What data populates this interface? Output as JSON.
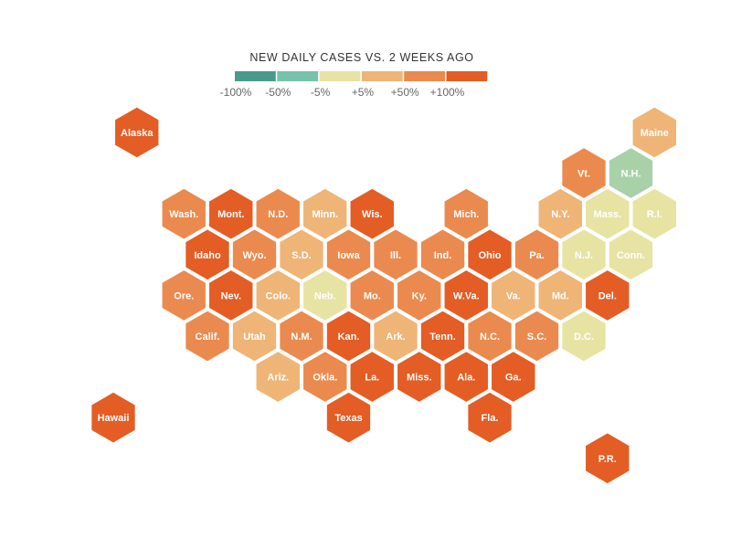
{
  "legend": {
    "title": "NEW DAILY CASES VS. 2 WEEKS AGO",
    "bins": [
      {
        "color": "#4a9a8c"
      },
      {
        "color": "#76c2aa"
      },
      {
        "color": "#e7e3a3"
      },
      {
        "color": "#eeb577"
      },
      {
        "color": "#eb8a4e"
      },
      {
        "color": "#e35d25"
      }
    ],
    "ticks": [
      "-100%",
      "-50%",
      "-5%",
      "+5%",
      "+50%",
      "+100%"
    ]
  },
  "palette": {
    "dark_orange": "#e35d25",
    "mid_orange": "#eb8a4e",
    "light_orange": "#eeb577",
    "pale_yellow": "#e7e3a3",
    "light_green": "#a9d1a8",
    "teal": "#4a9a8c",
    "label_light": "#ffffff"
  },
  "states": [
    {
      "label": "Alaska",
      "row": 0,
      "col": 0.5,
      "color": "dark_orange"
    },
    {
      "label": "Maine",
      "row": 0,
      "col": 11.5,
      "color": "light_orange"
    },
    {
      "label": "Vt.",
      "row": 1,
      "col": 10,
      "color": "mid_orange"
    },
    {
      "label": "N.H.",
      "row": 1,
      "col": 11,
      "color": "light_green"
    },
    {
      "label": "Wash.",
      "row": 2,
      "col": 1.5,
      "color": "mid_orange"
    },
    {
      "label": "Mont.",
      "row": 2,
      "col": 2.5,
      "color": "dark_orange"
    },
    {
      "label": "N.D.",
      "row": 2,
      "col": 3.5,
      "color": "mid_orange"
    },
    {
      "label": "Minn.",
      "row": 2,
      "col": 4.5,
      "color": "light_orange"
    },
    {
      "label": "Wis.",
      "row": 2,
      "col": 5.5,
      "color": "dark_orange"
    },
    {
      "label": "Mich.",
      "row": 2,
      "col": 7.5,
      "color": "mid_orange"
    },
    {
      "label": "N.Y.",
      "row": 2,
      "col": 9.5,
      "color": "light_orange"
    },
    {
      "label": "Mass.",
      "row": 2,
      "col": 10.5,
      "color": "pale_yellow"
    },
    {
      "label": "R.I.",
      "row": 2,
      "col": 11.5,
      "color": "pale_yellow"
    },
    {
      "label": "Idaho",
      "row": 3,
      "col": 2,
      "color": "dark_orange"
    },
    {
      "label": "Wyo.",
      "row": 3,
      "col": 3,
      "color": "mid_orange"
    },
    {
      "label": "S.D.",
      "row": 3,
      "col": 4,
      "color": "light_orange"
    },
    {
      "label": "Iowa",
      "row": 3,
      "col": 5,
      "color": "mid_orange"
    },
    {
      "label": "Ill.",
      "row": 3,
      "col": 6,
      "color": "mid_orange"
    },
    {
      "label": "Ind.",
      "row": 3,
      "col": 7,
      "color": "mid_orange"
    },
    {
      "label": "Ohio",
      "row": 3,
      "col": 8,
      "color": "dark_orange"
    },
    {
      "label": "Pa.",
      "row": 3,
      "col": 9,
      "color": "mid_orange"
    },
    {
      "label": "N.J.",
      "row": 3,
      "col": 10,
      "color": "pale_yellow"
    },
    {
      "label": "Conn.",
      "row": 3,
      "col": 11,
      "color": "pale_yellow"
    },
    {
      "label": "Ore.",
      "row": 4,
      "col": 1.5,
      "color": "mid_orange"
    },
    {
      "label": "Nev.",
      "row": 4,
      "col": 2.5,
      "color": "dark_orange"
    },
    {
      "label": "Colo.",
      "row": 4,
      "col": 3.5,
      "color": "light_orange"
    },
    {
      "label": "Neb.",
      "row": 4,
      "col": 4.5,
      "color": "pale_yellow"
    },
    {
      "label": "Mo.",
      "row": 4,
      "col": 5.5,
      "color": "mid_orange"
    },
    {
      "label": "Ky.",
      "row": 4,
      "col": 6.5,
      "color": "mid_orange"
    },
    {
      "label": "W.Va.",
      "row": 4,
      "col": 7.5,
      "color": "dark_orange"
    },
    {
      "label": "Va.",
      "row": 4,
      "col": 8.5,
      "color": "light_orange"
    },
    {
      "label": "Md.",
      "row": 4,
      "col": 9.5,
      "color": "light_orange"
    },
    {
      "label": "Del.",
      "row": 4,
      "col": 10.5,
      "color": "dark_orange"
    },
    {
      "label": "Calif.",
      "row": 5,
      "col": 2,
      "color": "mid_orange"
    },
    {
      "label": "Utah",
      "row": 5,
      "col": 3,
      "color": "light_orange"
    },
    {
      "label": "N.M.",
      "row": 5,
      "col": 4,
      "color": "mid_orange"
    },
    {
      "label": "Kan.",
      "row": 5,
      "col": 5,
      "color": "dark_orange"
    },
    {
      "label": "Ark.",
      "row": 5,
      "col": 6,
      "color": "light_orange"
    },
    {
      "label": "Tenn.",
      "row": 5,
      "col": 7,
      "color": "dark_orange"
    },
    {
      "label": "N.C.",
      "row": 5,
      "col": 8,
      "color": "mid_orange"
    },
    {
      "label": "S.C.",
      "row": 5,
      "col": 9,
      "color": "mid_orange"
    },
    {
      "label": "D.C.",
      "row": 5,
      "col": 10,
      "color": "pale_yellow"
    },
    {
      "label": "Ariz.",
      "row": 6,
      "col": 3.5,
      "color": "light_orange"
    },
    {
      "label": "Okla.",
      "row": 6,
      "col": 4.5,
      "color": "mid_orange"
    },
    {
      "label": "La.",
      "row": 6,
      "col": 5.5,
      "color": "dark_orange"
    },
    {
      "label": "Miss.",
      "row": 6,
      "col": 6.5,
      "color": "dark_orange"
    },
    {
      "label": "Ala.",
      "row": 6,
      "col": 7.5,
      "color": "dark_orange"
    },
    {
      "label": "Ga.",
      "row": 6,
      "col": 8.5,
      "color": "dark_orange"
    },
    {
      "label": "Hawaii",
      "row": 7,
      "col": 0,
      "color": "dark_orange"
    },
    {
      "label": "Texas",
      "row": 7,
      "col": 5,
      "color": "dark_orange"
    },
    {
      "label": "Fla.",
      "row": 7,
      "col": 8,
      "color": "dark_orange"
    },
    {
      "label": "P.R.",
      "row": 8,
      "col": 10.5,
      "color": "dark_orange"
    }
  ]
}
